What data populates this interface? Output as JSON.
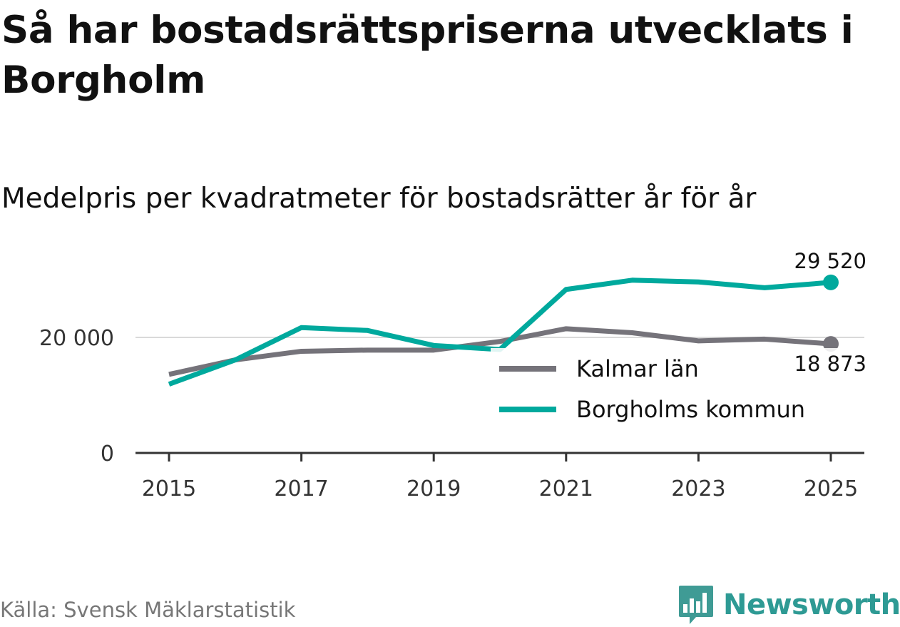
{
  "title": "Så har bostadsrättspriserna utvecklats i Borgholm",
  "subtitle": "Medelpris per kvadratmeter för bostadsrätter år för år",
  "source": "Källa: Svensk Mäklarstatistik",
  "brand": "Newsworthy",
  "colors": {
    "kalmar": "#75737a",
    "borgholm": "#00a99d",
    "brand": "#2e9a94",
    "axis": "#333333",
    "grid": "#d9d9d9"
  },
  "chart_data": {
    "type": "line",
    "title": "Medelpris per kvadratmeter för bostadsrätter år för år",
    "xlabel": "",
    "ylabel": "",
    "x": [
      2015,
      2016,
      2017,
      2018,
      2019,
      2020,
      2021,
      2022,
      2023,
      2024,
      2025
    ],
    "xticks": [
      "2015",
      "2017",
      "2019",
      "2021",
      "2023",
      "2025"
    ],
    "xlim": [
      2015,
      2025
    ],
    "yticks": [
      "0",
      "20 000"
    ],
    "ylim": [
      0,
      32000
    ],
    "grid": true,
    "legend_position": "bottom-right",
    "series": [
      {
        "name": "Kalmar län",
        "values": [
          13600,
          16100,
          17600,
          17800,
          17800,
          19300,
          21500,
          20800,
          19400,
          19700,
          18873
        ],
        "end_label": "18 873"
      },
      {
        "name": "Borgholms kommun",
        "values": [
          11900,
          16100,
          21700,
          21200,
          18600,
          17900,
          28300,
          29900,
          29600,
          28600,
          29520
        ],
        "end_label": "29 520"
      }
    ]
  }
}
